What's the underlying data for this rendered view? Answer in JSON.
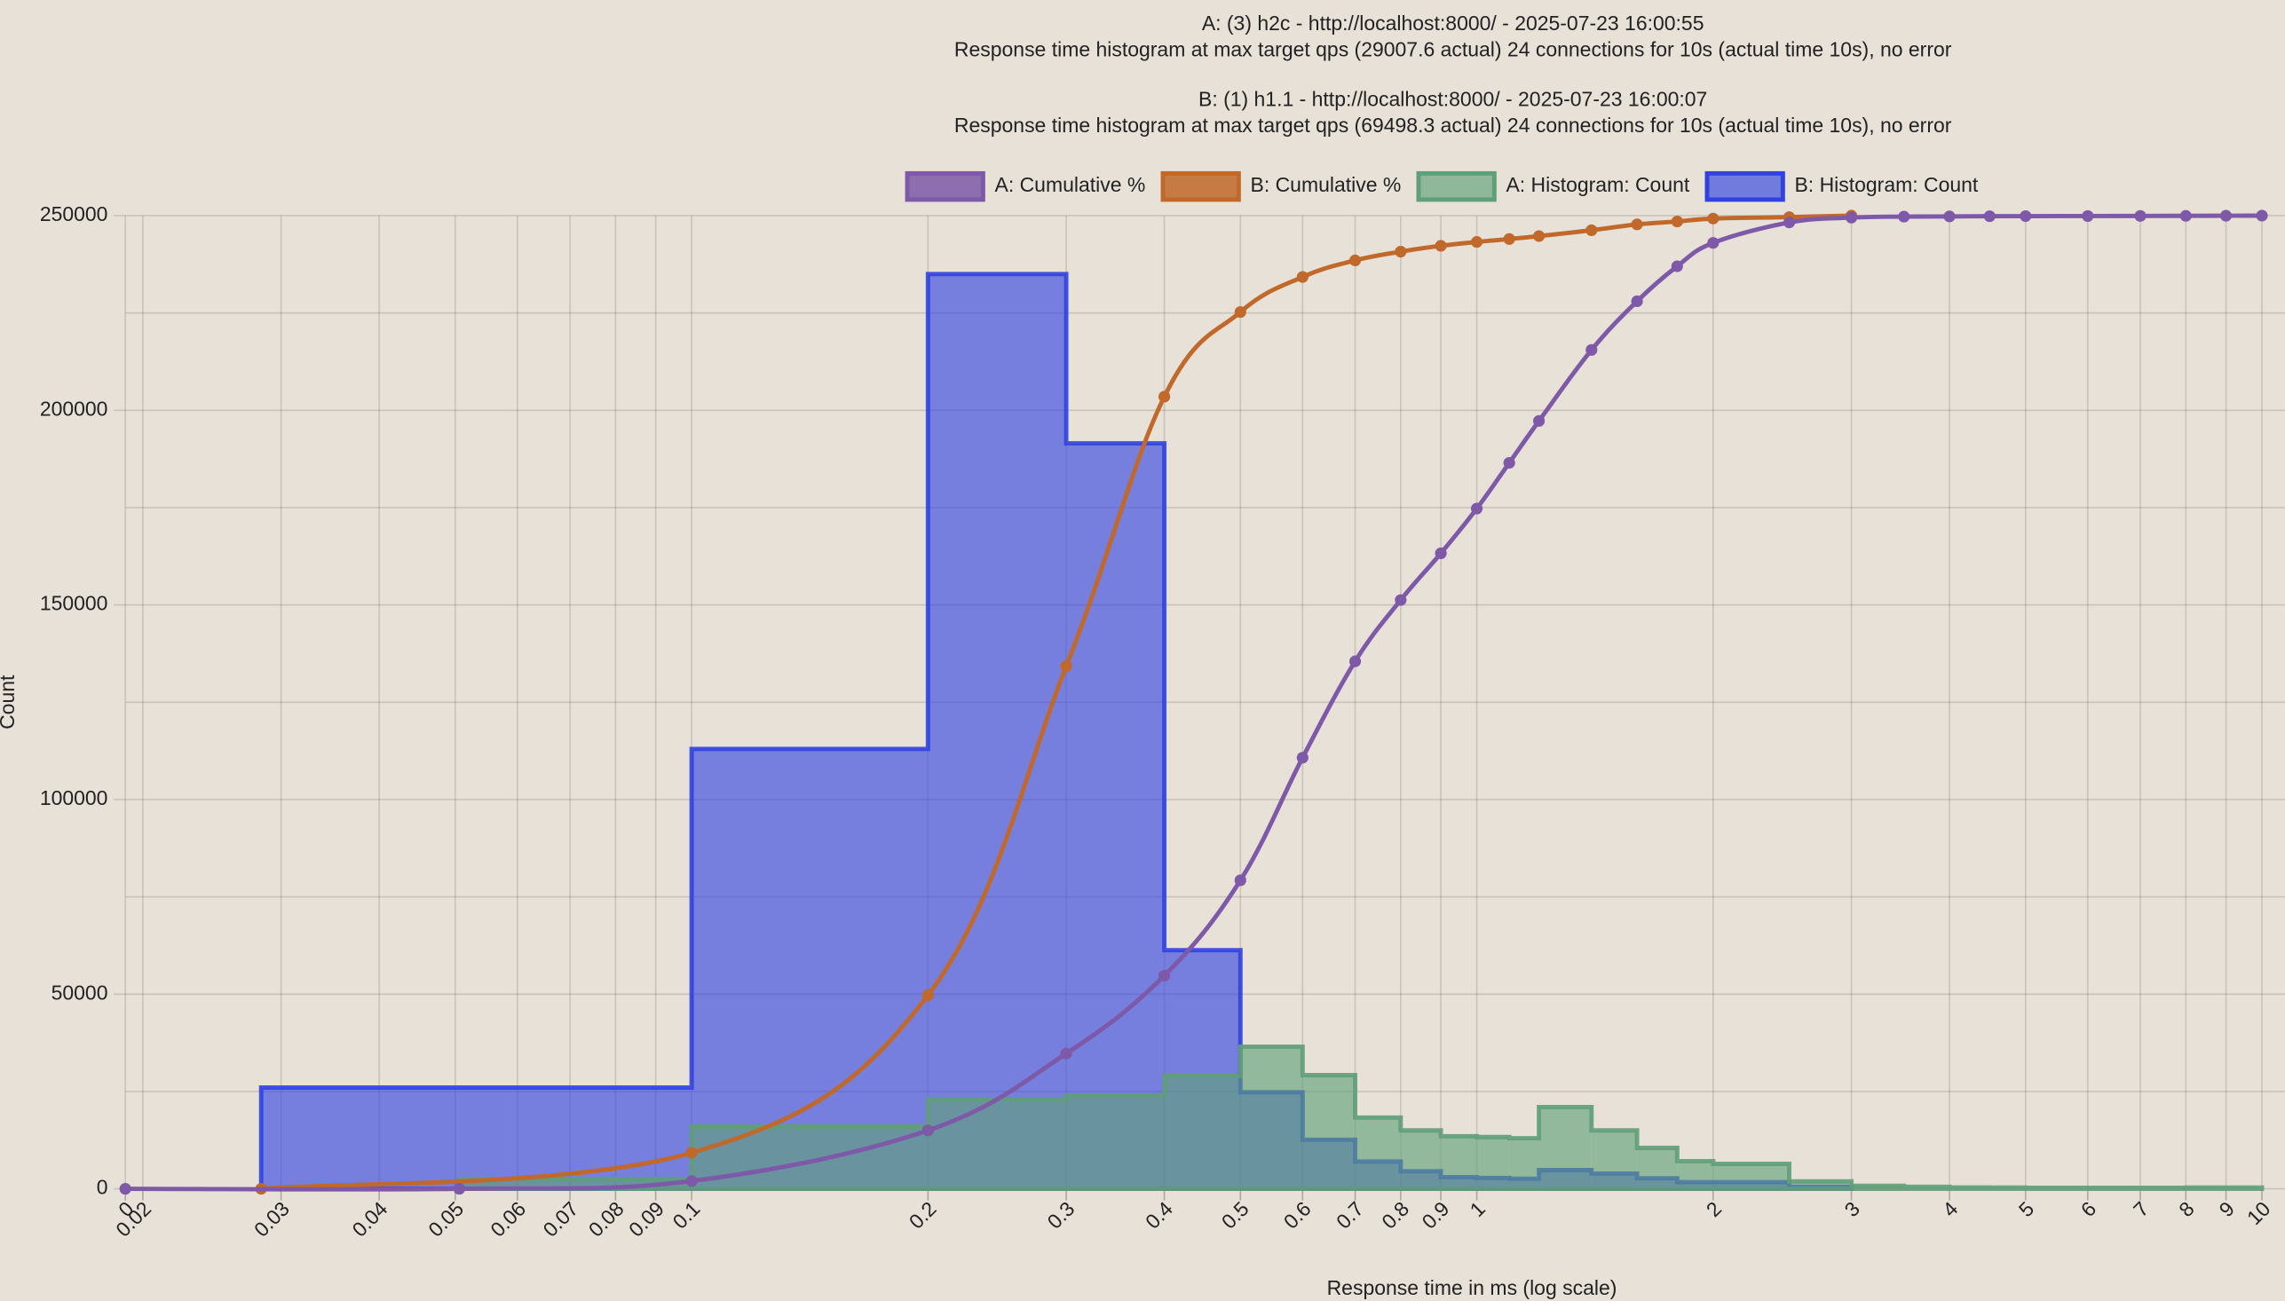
{
  "chart_data": {
    "type": "histogram",
    "title": [
      "A: (3) h2c - http://localhost:8000/ - 2025-07-23 16:00:55",
      "Response time histogram at max target qps (29007.6 actual) 24 connections for 10s (actual time 10s), no error",
      "B: (1) h1.1 - http://localhost:8000/ - 2025-07-23 16:00:07",
      "Response time histogram at max target qps (69498.3 actual) 24 connections for 10s (actual time 10s), no error"
    ],
    "x_label": "Response time in ms (log scale)",
    "y_label": "Count",
    "x_log": true,
    "xlim": [
      0.019,
      10.7
    ],
    "xticks": [
      {
        "value": 0.019,
        "label": "0"
      },
      0.02,
      0.03,
      0.04,
      0.05,
      0.06,
      0.07,
      0.08,
      0.09,
      0.1,
      0.2,
      0.3,
      0.4,
      0.5,
      0.6,
      0.7,
      0.8,
      0.9,
      1,
      2,
      3,
      4,
      5,
      6,
      7,
      8,
      9,
      10
    ],
    "ylim": [
      0,
      250000
    ],
    "yticks": [
      0,
      50000,
      100000,
      150000,
      200000,
      250000
    ],
    "minor_yticks": [
      25000,
      75000,
      125000,
      175000,
      225000
    ],
    "y2lim": [
      0,
      100
    ],
    "grid": true,
    "legend": "top",
    "series": [
      {
        "name": "A: Cumulative %",
        "type": "line",
        "axis": "y2",
        "color": "#7d59a8",
        "x": [
          0.019,
          0.0506,
          0.1,
          0.2,
          0.3,
          0.4,
          0.5,
          0.6,
          0.7,
          0.8,
          0.9,
          1,
          1.1,
          1.2,
          1.4,
          1.6,
          1.8,
          2,
          2.5,
          3,
          3.5,
          4,
          4.5,
          5,
          6,
          7,
          8,
          9,
          10
        ],
        "values": [
          0,
          0,
          0.8,
          6.0,
          13.9,
          21.9,
          31.7,
          44.3,
          54.2,
          60.5,
          65.3,
          69.9,
          74.6,
          78.9,
          86.2,
          91.2,
          94.8,
          97.2,
          99.3,
          99.8,
          99.9,
          99.92,
          99.94,
          99.95,
          99.96,
          99.97,
          99.98,
          99.99,
          100
        ]
      },
      {
        "name": "B: Cumulative %",
        "type": "line",
        "axis": "y2",
        "color": "#c0692a",
        "x": [
          0.0283,
          0.1,
          0.2,
          0.3,
          0.4,
          0.5,
          0.6,
          0.7,
          0.8,
          0.9,
          1,
          1.1,
          1.2,
          1.4,
          1.6,
          1.8,
          2,
          2.5,
          3
        ],
        "values": [
          0,
          3.7,
          19.9,
          53.7,
          81.4,
          90.1,
          93.7,
          95.4,
          96.3,
          96.9,
          97.3,
          97.6,
          97.9,
          98.5,
          99.1,
          99.4,
          99.7,
          99.85,
          100
        ]
      },
      {
        "name": "A: Histogram: Count",
        "type": "histogram",
        "color": "#5f9f79",
        "bins": [
          0.0506,
          0.1,
          0.2,
          0.3,
          0.4,
          0.5,
          0.6,
          0.7,
          0.8,
          0.9,
          1,
          1.1,
          1.2,
          1.4,
          1.6,
          1.8,
          2,
          2.5,
          3,
          3.5,
          4,
          4.5,
          5,
          6,
          7,
          8,
          9,
          10
        ],
        "values": [
          2500,
          16000,
          23000,
          24000,
          29000,
          36500,
          29200,
          18300,
          15000,
          13500,
          13300,
          13000,
          21000,
          15000,
          10500,
          7100,
          6400,
          1900,
          750,
          500,
          350,
          300,
          250,
          250,
          250,
          300,
          300
        ]
      },
      {
        "name": "B: Histogram: Count",
        "type": "histogram",
        "color": "#3142e0",
        "bins": [
          0.0283,
          0.1,
          0.2,
          0.3,
          0.4,
          0.5,
          0.6,
          0.7,
          0.8,
          0.9,
          1,
          1.1,
          1.2,
          1.4,
          1.6,
          1.8,
          2,
          2.5,
          3
        ],
        "values": [
          26000,
          113000,
          235000,
          191500,
          61300,
          24800,
          12600,
          7000,
          4500,
          3000,
          2800,
          2600,
          4800,
          3900,
          2700,
          1700,
          1700,
          500
        ]
      }
    ]
  }
}
